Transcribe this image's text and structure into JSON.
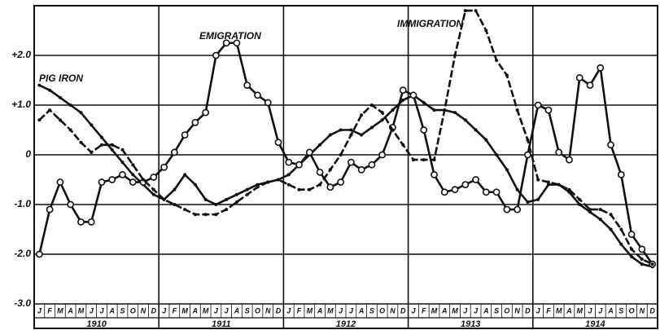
{
  "chart_data": {
    "type": "line",
    "categories": [
      "J",
      "F",
      "M",
      "A",
      "M",
      "J",
      "J",
      "A",
      "S",
      "O",
      "N",
      "D",
      "J",
      "F",
      "M",
      "A",
      "M",
      "J",
      "J",
      "A",
      "S",
      "O",
      "N",
      "D",
      "J",
      "F",
      "M",
      "A",
      "M",
      "J",
      "J",
      "A",
      "S",
      "O",
      "N",
      "D",
      "J",
      "F",
      "M",
      "A",
      "M",
      "J",
      "J",
      "A",
      "S",
      "O",
      "N",
      "D",
      "J",
      "F",
      "M",
      "A",
      "M",
      "J",
      "J",
      "A",
      "S",
      "O",
      "N",
      "D"
    ],
    "years": [
      "1910",
      "1911",
      "1912",
      "1913",
      "1914"
    ],
    "series": [
      {
        "name": "PIG IRON",
        "color": "#111111",
        "marker": "dot",
        "dash": false,
        "values": [
          1.4,
          1.3,
          1.15,
          1.0,
          0.85,
          0.6,
          0.35,
          0.1,
          -0.15,
          -0.4,
          -0.6,
          -0.8,
          -0.9,
          -0.7,
          -0.4,
          -0.6,
          -0.9,
          -1.0,
          -0.9,
          -0.8,
          -0.7,
          -0.6,
          -0.55,
          -0.5,
          -0.4,
          -0.2,
          0.0,
          0.2,
          0.4,
          0.5,
          0.5,
          0.4,
          0.55,
          0.7,
          0.9,
          1.1,
          1.2,
          1.05,
          0.9,
          0.9,
          0.85,
          0.7,
          0.5,
          0.3,
          0.0,
          -0.3,
          -0.7,
          -0.95,
          -0.9,
          -0.6,
          -0.6,
          -0.75,
          -1.0,
          -1.15,
          -1.3,
          -1.5,
          -1.8,
          -2.05,
          -2.2,
          -2.25
        ]
      },
      {
        "name": "EMIGRATION",
        "color": "#111111",
        "marker": "circle",
        "dash": false,
        "values": [
          -2.0,
          -1.1,
          -0.55,
          -1.0,
          -1.35,
          -1.35,
          -0.55,
          -0.5,
          -0.4,
          -0.55,
          -0.55,
          -0.45,
          -0.25,
          0.05,
          0.4,
          0.65,
          0.85,
          2.0,
          2.25,
          2.25,
          1.4,
          1.2,
          1.05,
          0.25,
          -0.15,
          -0.2,
          0.05,
          -0.35,
          -0.65,
          -0.55,
          -0.15,
          -0.3,
          -0.2,
          0.0,
          0.55,
          1.3,
          1.2,
          0.5,
          -0.4,
          -0.75,
          -0.7,
          -0.6,
          -0.5,
          -0.75,
          -0.75,
          -1.1,
          -1.1,
          0.0,
          1.0,
          0.9,
          0.05,
          -0.1,
          1.55,
          1.4,
          1.75,
          0.2,
          -0.4,
          -1.6,
          -1.9,
          -2.2
        ]
      },
      {
        "name": "IMMIGRATION",
        "color": "#111111",
        "marker": "dot",
        "dash": true,
        "values": [
          0.7,
          0.9,
          0.7,
          0.5,
          0.25,
          0.05,
          0.2,
          0.2,
          0.1,
          -0.2,
          -0.5,
          -0.7,
          -0.9,
          -1.0,
          -1.1,
          -1.2,
          -1.2,
          -1.2,
          -1.1,
          -0.95,
          -0.8,
          -0.65,
          -0.55,
          -0.5,
          -0.6,
          -0.7,
          -0.7,
          -0.6,
          -0.3,
          0.0,
          0.4,
          0.8,
          1.0,
          0.85,
          0.5,
          0.2,
          -0.1,
          -0.1,
          -0.1,
          0.9,
          2.0,
          2.9,
          2.9,
          2.5,
          1.9,
          1.6,
          0.9,
          0.3,
          -0.5,
          -0.55,
          -0.6,
          -0.7,
          -0.9,
          -1.1,
          -1.1,
          -1.2,
          -1.5,
          -1.9,
          -2.1,
          -2.2
        ]
      }
    ],
    "ylim": [
      -3.0,
      3.0
    ],
    "yticks": [
      {
        "value": 2,
        "label": "+2.0"
      },
      {
        "value": 1,
        "label": "+1.0"
      },
      0,
      {
        "value": -1,
        "label": "-1.0"
      },
      {
        "value": -2,
        "label": "-2.0"
      },
      {
        "value": -3,
        "label": "-3.0"
      }
    ],
    "grid": true
  }
}
